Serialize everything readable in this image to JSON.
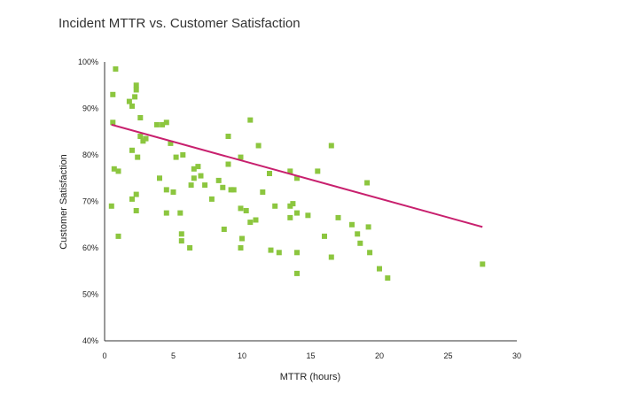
{
  "chart_data": {
    "type": "scatter",
    "title": "Incident MTTR vs. Customer Satisfaction",
    "xlabel": "MTTR (hours)",
    "ylabel": "Customer Satisfaction",
    "xlim": [
      0,
      30
    ],
    "ylim": [
      40,
      100
    ],
    "x_ticks": [
      "0",
      "5",
      "10",
      "15",
      "20",
      "25",
      "30"
    ],
    "y_ticks": [
      "40%",
      "50%",
      "60%",
      "70%",
      "80%",
      "90%",
      "100%"
    ],
    "grid": false,
    "legend": "none",
    "point_color": "#8cc63f",
    "trend_color": "#c8206e",
    "trendline": {
      "x": [
        0.5,
        27.5
      ],
      "y": [
        86.5,
        64.5
      ]
    },
    "points": [
      {
        "x": 0.8,
        "y": 98.5
      },
      {
        "x": 0.6,
        "y": 93
      },
      {
        "x": 0.6,
        "y": 87
      },
      {
        "x": 0.5,
        "y": 69
      },
      {
        "x": 0.7,
        "y": 77
      },
      {
        "x": 1.0,
        "y": 76.5
      },
      {
        "x": 1.0,
        "y": 62.5
      },
      {
        "x": 1.8,
        "y": 91.5
      },
      {
        "x": 2.0,
        "y": 90.5
      },
      {
        "x": 2.3,
        "y": 95
      },
      {
        "x": 2.3,
        "y": 94
      },
      {
        "x": 2.2,
        "y": 92.5
      },
      {
        "x": 2.6,
        "y": 88
      },
      {
        "x": 2.6,
        "y": 84
      },
      {
        "x": 2.8,
        "y": 83
      },
      {
        "x": 3.0,
        "y": 83.5
      },
      {
        "x": 2.0,
        "y": 81
      },
      {
        "x": 2.4,
        "y": 79.5
      },
      {
        "x": 2.0,
        "y": 70.5
      },
      {
        "x": 2.3,
        "y": 71.5
      },
      {
        "x": 2.3,
        "y": 68
      },
      {
        "x": 3.8,
        "y": 86.5
      },
      {
        "x": 4.2,
        "y": 86.5
      },
      {
        "x": 4.5,
        "y": 87
      },
      {
        "x": 4.8,
        "y": 82.5
      },
      {
        "x": 5.2,
        "y": 79.5
      },
      {
        "x": 5.7,
        "y": 80
      },
      {
        "x": 4.0,
        "y": 75
      },
      {
        "x": 4.5,
        "y": 72.5
      },
      {
        "x": 5.0,
        "y": 72
      },
      {
        "x": 4.5,
        "y": 67.5
      },
      {
        "x": 5.5,
        "y": 67.5
      },
      {
        "x": 5.6,
        "y": 63
      },
      {
        "x": 5.6,
        "y": 61.5
      },
      {
        "x": 6.2,
        "y": 60
      },
      {
        "x": 6.5,
        "y": 77
      },
      {
        "x": 6.8,
        "y": 77.5
      },
      {
        "x": 7.0,
        "y": 75.5
      },
      {
        "x": 6.5,
        "y": 75
      },
      {
        "x": 6.3,
        "y": 73.5
      },
      {
        "x": 7.3,
        "y": 73.5
      },
      {
        "x": 7.8,
        "y": 70.5
      },
      {
        "x": 8.3,
        "y": 74.5
      },
      {
        "x": 8.6,
        "y": 73
      },
      {
        "x": 9.0,
        "y": 84
      },
      {
        "x": 9.0,
        "y": 78
      },
      {
        "x": 9.2,
        "y": 72.5
      },
      {
        "x": 9.4,
        "y": 72.5
      },
      {
        "x": 8.7,
        "y": 64
      },
      {
        "x": 9.9,
        "y": 79.5
      },
      {
        "x": 9.9,
        "y": 68.5
      },
      {
        "x": 10.3,
        "y": 68
      },
      {
        "x": 10.0,
        "y": 62
      },
      {
        "x": 9.9,
        "y": 60
      },
      {
        "x": 10.6,
        "y": 87.5
      },
      {
        "x": 11.2,
        "y": 82
      },
      {
        "x": 11.5,
        "y": 72
      },
      {
        "x": 11.0,
        "y": 66
      },
      {
        "x": 10.6,
        "y": 65.5
      },
      {
        "x": 12.0,
        "y": 76
      },
      {
        "x": 12.4,
        "y": 69
      },
      {
        "x": 12.1,
        "y": 59.5
      },
      {
        "x": 12.7,
        "y": 59
      },
      {
        "x": 13.5,
        "y": 76.5
      },
      {
        "x": 14.0,
        "y": 75
      },
      {
        "x": 13.5,
        "y": 69
      },
      {
        "x": 13.7,
        "y": 69.5
      },
      {
        "x": 13.5,
        "y": 66.5
      },
      {
        "x": 14.0,
        "y": 67.5
      },
      {
        "x": 14.0,
        "y": 59
      },
      {
        "x": 14.0,
        "y": 54.5
      },
      {
        "x": 14.8,
        "y": 67
      },
      {
        "x": 15.5,
        "y": 76.5
      },
      {
        "x": 16.5,
        "y": 82
      },
      {
        "x": 17.0,
        "y": 66.5
      },
      {
        "x": 16.0,
        "y": 62.5
      },
      {
        "x": 16.5,
        "y": 58
      },
      {
        "x": 18.0,
        "y": 65
      },
      {
        "x": 18.4,
        "y": 63
      },
      {
        "x": 18.6,
        "y": 61
      },
      {
        "x": 19.1,
        "y": 74
      },
      {
        "x": 19.2,
        "y": 64.5
      },
      {
        "x": 19.3,
        "y": 59
      },
      {
        "x": 20.0,
        "y": 55.5
      },
      {
        "x": 20.6,
        "y": 53.5
      },
      {
        "x": 27.5,
        "y": 56.5
      }
    ]
  }
}
